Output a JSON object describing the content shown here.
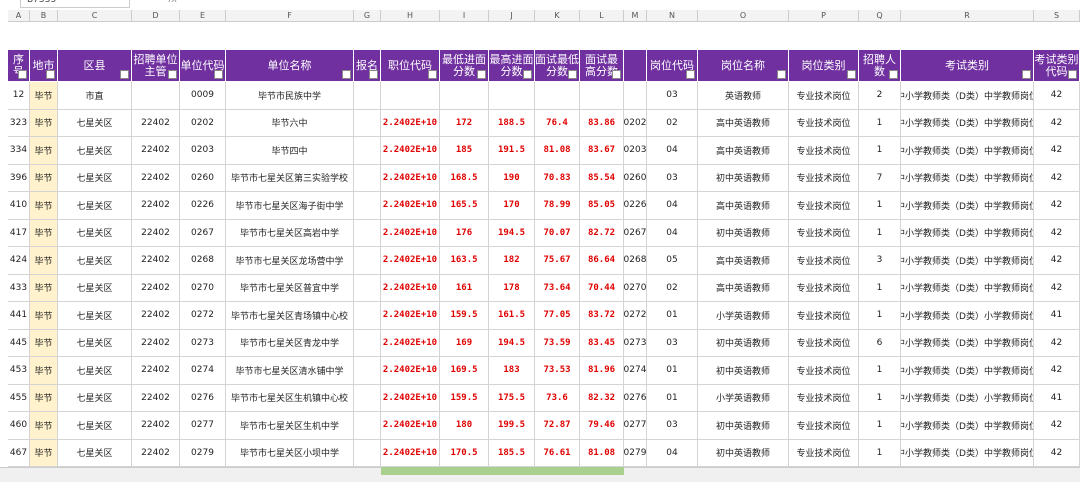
{
  "name_box": "B7533",
  "formula_icon": "fx",
  "columns": [
    "A",
    "B",
    "C",
    "D",
    "E",
    "F",
    "G",
    "H",
    "I",
    "J",
    "K",
    "L",
    "M",
    "N",
    "O",
    "P",
    "Q",
    "R",
    "S"
  ],
  "header": [
    "序号",
    "地市",
    "区县",
    "招聘单位主管",
    "单位代码",
    "单位名称",
    "报名",
    "职位代码",
    "最低进面分数",
    "最高进面分数",
    "面试最低分数",
    "面试最高分数",
    null,
    "岗位代码",
    "岗位名称",
    "岗位类别",
    "招聘人数",
    "考试类别",
    "考试类别代码"
  ],
  "rows": [
    [
      "12",
      "毕节",
      "市直",
      null,
      "0009",
      "毕节市民族中学",
      null,
      null,
      null,
      null,
      null,
      null,
      null,
      "03",
      "英语教师",
      "专业技术岗位",
      "2",
      "中小学教师类（D类）中学教师岗位",
      "42"
    ],
    [
      "323",
      "毕节",
      "七星关区",
      "22402",
      "0202",
      "毕节六中",
      null,
      "2.2402E+10",
      "172",
      "188.5",
      "76.4",
      "83.86",
      "0202",
      "02",
      "高中英语教师",
      "专业技术岗位",
      "1",
      "中小学教师类（D类）中学教师岗位",
      "42"
    ],
    [
      "334",
      "毕节",
      "七星关区",
      "22402",
      "0203",
      "毕节四中",
      null,
      "2.2402E+10",
      "185",
      "191.5",
      "81.08",
      "83.67",
      "0203",
      "04",
      "高中英语教师",
      "专业技术岗位",
      "1",
      "中小学教师类（D类）中学教师岗位",
      "42"
    ],
    [
      "396",
      "毕节",
      "七星关区",
      "22402",
      "0260",
      "毕节市七星关区第三实验学校",
      null,
      "2.2402E+10",
      "168.5",
      "190",
      "70.83",
      "85.54",
      "0260",
      "03",
      "初中英语教师",
      "专业技术岗位",
      "7",
      "中小学教师类（D类）中学教师岗位",
      "42"
    ],
    [
      "410",
      "毕节",
      "七星关区",
      "22402",
      "0226",
      "毕节市七星关区海子街中学",
      null,
      "2.2402E+10",
      "165.5",
      "170",
      "78.99",
      "85.05",
      "0226",
      "04",
      "高中英语教师",
      "专业技术岗位",
      "1",
      "中小学教师类（D类）中学教师岗位",
      "42"
    ],
    [
      "417",
      "毕节",
      "七星关区",
      "22402",
      "0267",
      "毕节市七星关区高岩中学",
      null,
      "2.2402E+10",
      "176",
      "194.5",
      "70.07",
      "82.72",
      "0267",
      "04",
      "初中英语教师",
      "专业技术岗位",
      "1",
      "中小学教师类（D类）中学教师岗位",
      "42"
    ],
    [
      "424",
      "毕节",
      "七星关区",
      "22402",
      "0268",
      "毕节市七星关区龙场营中学",
      null,
      "2.2402E+10",
      "163.5",
      "182",
      "75.67",
      "86.64",
      "0268",
      "05",
      "高中英语教师",
      "专业技术岗位",
      "3",
      "中小学教师类（D类）中学教师岗位",
      "42"
    ],
    [
      "433",
      "毕节",
      "七星关区",
      "22402",
      "0270",
      "毕节市七星关区普宜中学",
      null,
      "2.2402E+10",
      "161",
      "178",
      "73.64",
      "70.44",
      "0270",
      "02",
      "高中英语教师",
      "专业技术岗位",
      "1",
      "中小学教师类（D类）中学教师岗位",
      "42"
    ],
    [
      "441",
      "毕节",
      "七星关区",
      "22402",
      "0272",
      "毕节市七星关区青场镇中心校",
      null,
      "2.2402E+10",
      "159.5",
      "161.5",
      "77.05",
      "83.72",
      "0272",
      "01",
      "小学英语教师",
      "专业技术岗位",
      "1",
      "中小学教师类（D类）小学教师岗位",
      "41"
    ],
    [
      "445",
      "毕节",
      "七星关区",
      "22402",
      "0273",
      "毕节市七星关区青龙中学",
      null,
      "2.2402E+10",
      "169",
      "194.5",
      "73.59",
      "83.45",
      "0273",
      "03",
      "初中英语教师",
      "专业技术岗位",
      "6",
      "中小学教师类（D类）中学教师岗位",
      "42"
    ],
    [
      "453",
      "毕节",
      "七星关区",
      "22402",
      "0274",
      "毕节市七星关区清水铺中学",
      null,
      "2.2402E+10",
      "169.5",
      "183",
      "73.53",
      "81.96",
      "0274",
      "01",
      "初中英语教师",
      "专业技术岗位",
      "1",
      "中小学教师类（D类）中学教师岗位",
      "42"
    ],
    [
      "455",
      "毕节",
      "七星关区",
      "22402",
      "0276",
      "毕节市七星关区生机镇中心校",
      null,
      "2.2402E+10",
      "159.5",
      "175.5",
      "73.6",
      "82.32",
      "0276",
      "01",
      "小学英语教师",
      "专业技术岗位",
      "1",
      "中小学教师类（D类）小学教师岗位",
      "41"
    ],
    [
      "460",
      "毕节",
      "七星关区",
      "22402",
      "0277",
      "毕节市七星关区生机中学",
      null,
      "2.2402E+10",
      "180",
      "199.5",
      "72.87",
      "79.46",
      "0277",
      "03",
      "初中英语教师",
      "专业技术岗位",
      "1",
      "中小学教师类（D类）中学教师岗位",
      "42"
    ],
    [
      "467",
      "毕节",
      "七星关区",
      "22402",
      "0279",
      "毕节市七星关区小坝中学",
      null,
      "2.2402E+10",
      "170.5",
      "185.5",
      "76.61",
      "81.08",
      "0279",
      "04",
      "初中英语教师",
      "专业技术岗位",
      "1",
      "中小学教师类（D类）中学教师岗位",
      "42"
    ]
  ]
}
